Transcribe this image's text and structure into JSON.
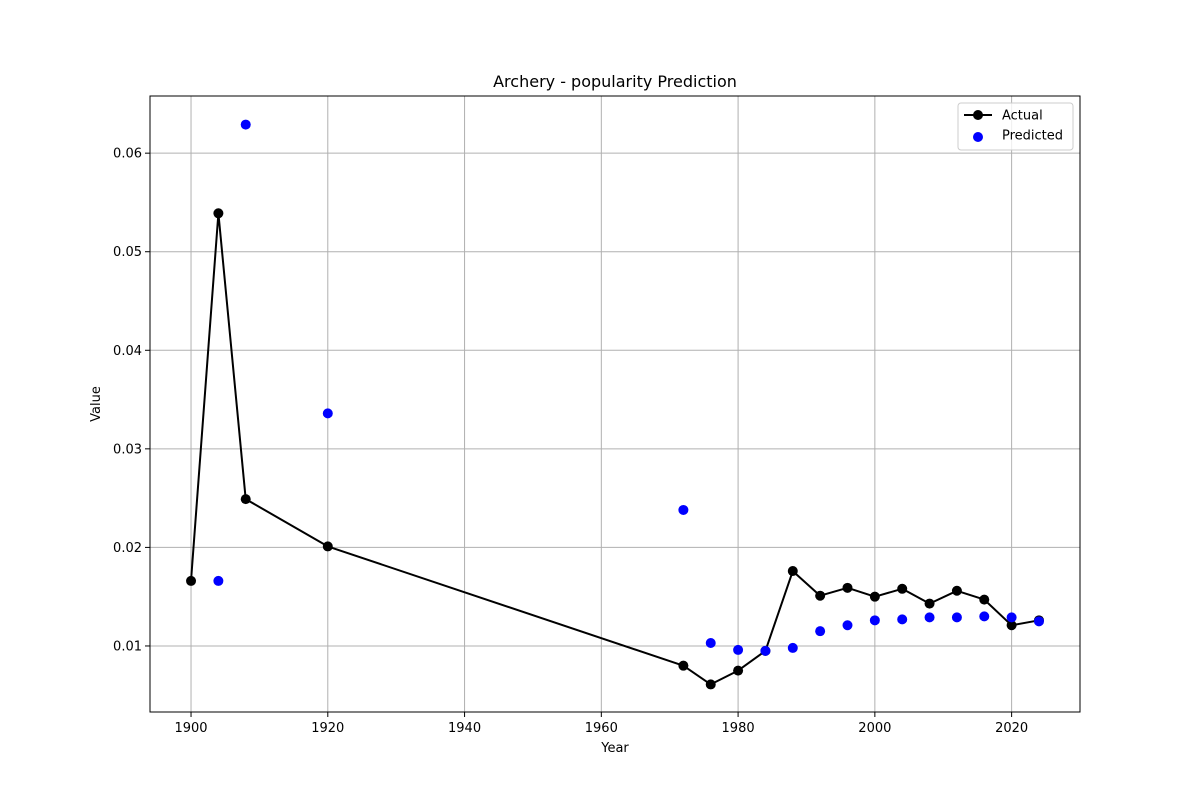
{
  "chart_data": {
    "type": "line",
    "title": "Archery - popularity Prediction",
    "xlabel": "Year",
    "ylabel": "Value",
    "xlim": [
      1894,
      2030
    ],
    "ylim": [
      0.0033,
      0.0658
    ],
    "xticks": [
      1900,
      1920,
      1940,
      1960,
      1980,
      2000,
      2020
    ],
    "yticks": [
      0.01,
      0.02,
      0.03,
      0.04,
      0.05,
      0.06
    ],
    "xtick_labels": [
      "1900",
      "1920",
      "1940",
      "1960",
      "1980",
      "2000",
      "2020"
    ],
    "ytick_labels": [
      "0.01",
      "0.02",
      "0.03",
      "0.04",
      "0.05",
      "0.06"
    ],
    "grid": true,
    "legend_position": "top-right",
    "series": [
      {
        "name": "Actual",
        "kind": "line-marker",
        "color": "#000000",
        "x": [
          1900,
          1904,
          1908,
          1920,
          1972,
          1976,
          1980,
          1984,
          1988,
          1992,
          1996,
          2000,
          2004,
          2008,
          2012,
          2016,
          2020,
          2024
        ],
        "y": [
          0.0166,
          0.0539,
          0.0249,
          0.0201,
          0.008,
          0.0061,
          0.0075,
          0.0095,
          0.0176,
          0.0151,
          0.0159,
          0.015,
          0.0158,
          0.0143,
          0.0156,
          0.0147,
          0.0121,
          0.0126
        ]
      },
      {
        "name": "Predicted",
        "kind": "scatter",
        "color": "#0000ff",
        "x": [
          1904,
          1908,
          1920,
          1972,
          1976,
          1980,
          1984,
          1988,
          1992,
          1996,
          2000,
          2004,
          2008,
          2012,
          2016,
          2020,
          2024
        ],
        "y": [
          0.0166,
          0.0629,
          0.0336,
          0.0238,
          0.0103,
          0.0096,
          0.0095,
          0.0098,
          0.0115,
          0.0121,
          0.0126,
          0.0127,
          0.0129,
          0.0129,
          0.013,
          0.0129,
          0.0125
        ]
      }
    ]
  }
}
